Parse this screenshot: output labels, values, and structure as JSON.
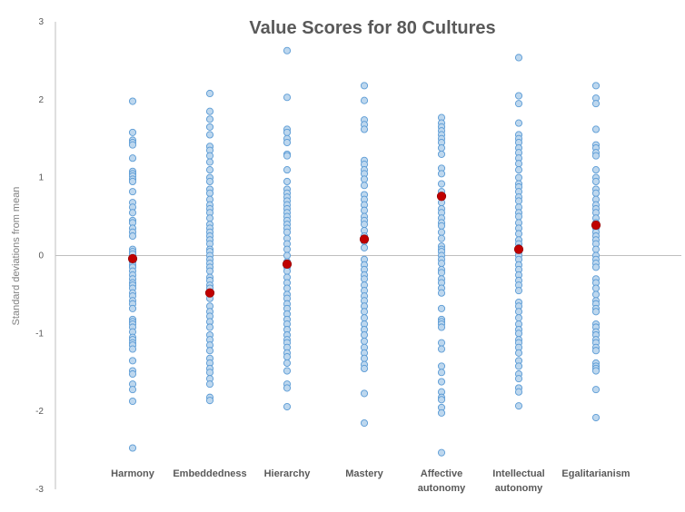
{
  "chart_data": {
    "type": "scatter",
    "title": "Value Scores for 80 Cultures",
    "ylabel": "Standard deviations from mean",
    "xlabel": "",
    "ylim": [
      -3,
      3
    ],
    "yticks": [
      -3,
      -2,
      -1,
      0,
      1,
      2,
      3
    ],
    "grid": false,
    "categories": [
      [
        "Harmony"
      ],
      [
        "Embeddedness"
      ],
      [
        "Hierarchy"
      ],
      [
        "Mastery"
      ],
      [
        "Affective",
        "autonomy"
      ],
      [
        "Intellectual",
        "autonomy"
      ],
      [
        "Egalitarianism"
      ]
    ],
    "colors": {
      "point_fill": "#bdd7ee",
      "point_stroke": "#5b9bd5",
      "mean_fill": "#c00000",
      "axis": "#bfbfbf"
    },
    "series": [
      {
        "values": [
          [
            1.98,
            1.58,
            1.48,
            1.45,
            1.42,
            1.25,
            1.08,
            1.05,
            1.02,
            0.98,
            0.95,
            0.82,
            0.68,
            0.62,
            0.55,
            0.45,
            0.42,
            0.35,
            0.3,
            0.25,
            0.08,
            0.05,
            0.02,
            -0.05,
            -0.08,
            -0.12,
            -0.15,
            -0.2,
            -0.25,
            -0.3,
            -0.35,
            -0.38,
            -0.42,
            -0.48,
            -0.52,
            -0.58,
            -0.62,
            -0.68,
            -0.82,
            -0.85,
            -0.88,
            -0.92,
            -0.98,
            -1.05,
            -1.08,
            -1.12,
            -1.15,
            -1.2,
            -1.35,
            -1.48,
            -1.52,
            -1.65,
            -1.72,
            -1.87,
            -2.47
          ],
          [
            2.08,
            1.85,
            1.75,
            1.65,
            1.55,
            1.4,
            1.35,
            1.28,
            1.2,
            1.1,
            1.0,
            0.95,
            0.85,
            0.8,
            0.72,
            0.65,
            0.6,
            0.55,
            0.48,
            0.4,
            0.35,
            0.3,
            0.25,
            0.2,
            0.15,
            0.08,
            0.05,
            0.0,
            -0.05,
            -0.1,
            -0.15,
            -0.2,
            -0.28,
            -0.32,
            -0.38,
            -0.42,
            -0.55,
            -0.65,
            -0.72,
            -0.78,
            -0.85,
            -0.92,
            -1.02,
            -1.08,
            -1.15,
            -1.22,
            -1.32,
            -1.38,
            -1.45,
            -1.5,
            -1.58,
            -1.65,
            -1.82,
            -1.86
          ],
          [
            2.63,
            2.03,
            1.62,
            1.58,
            1.5,
            1.45,
            1.3,
            1.28,
            1.1,
            0.95,
            0.85,
            0.8,
            0.75,
            0.7,
            0.65,
            0.6,
            0.55,
            0.5,
            0.45,
            0.4,
            0.35,
            0.3,
            0.22,
            0.15,
            0.08,
            0.0,
            -0.08,
            -0.15,
            -0.2,
            -0.28,
            -0.35,
            -0.42,
            -0.5,
            -0.55,
            -0.62,
            -0.68,
            -0.75,
            -0.82,
            -0.88,
            -0.95,
            -1.02,
            -1.08,
            -1.12,
            -1.18,
            -1.25,
            -1.3,
            -1.38,
            -1.48,
            -1.65,
            -1.7,
            -1.94
          ],
          [
            2.18,
            1.99,
            1.74,
            1.68,
            1.62,
            1.22,
            1.17,
            1.1,
            1.05,
            0.98,
            0.9,
            0.78,
            0.72,
            0.65,
            0.58,
            0.5,
            0.45,
            0.4,
            0.32,
            0.25,
            0.18,
            0.1,
            -0.05,
            -0.12,
            -0.18,
            -0.25,
            -0.3,
            -0.38,
            -0.45,
            -0.52,
            -0.58,
            -0.65,
            -0.72,
            -0.8,
            -0.88,
            -0.95,
            -1.02,
            -1.1,
            -1.18,
            -1.25,
            -1.32,
            -1.4,
            -1.45,
            -1.77,
            -2.15
          ],
          [
            1.77,
            1.7,
            1.65,
            1.6,
            1.55,
            1.5,
            1.45,
            1.38,
            1.3,
            1.12,
            1.05,
            0.92,
            0.82,
            0.68,
            0.6,
            0.55,
            0.48,
            0.42,
            0.38,
            0.3,
            0.22,
            0.12,
            0.08,
            0.05,
            0.0,
            -0.05,
            -0.1,
            -0.18,
            -0.22,
            -0.3,
            -0.35,
            -0.42,
            -0.48,
            -0.68,
            -0.82,
            -0.85,
            -0.88,
            -0.92,
            -1.12,
            -1.2,
            -1.42,
            -1.5,
            -1.62,
            -1.75,
            -1.82,
            -1.85,
            -1.95,
            -2.02,
            -2.53
          ],
          [
            2.54,
            2.05,
            1.95,
            1.7,
            1.55,
            1.5,
            1.45,
            1.38,
            1.32,
            1.25,
            1.18,
            1.1,
            1.0,
            0.92,
            0.88,
            0.82,
            0.75,
            0.7,
            0.62,
            0.55,
            0.5,
            0.42,
            0.35,
            0.28,
            0.2,
            0.15,
            0.1,
            0.05,
            0.0,
            -0.05,
            -0.12,
            -0.18,
            -0.25,
            -0.32,
            -0.38,
            -0.45,
            -0.6,
            -0.65,
            -0.72,
            -0.8,
            -0.88,
            -0.95,
            -1.0,
            -1.08,
            -1.12,
            -1.18,
            -1.25,
            -1.35,
            -1.42,
            -1.52,
            -1.58,
            -1.7,
            -1.75,
            -1.93
          ],
          [
            2.18,
            2.02,
            1.95,
            1.62,
            1.42,
            1.38,
            1.32,
            1.28,
            1.1,
            1.0,
            0.95,
            0.85,
            0.8,
            0.72,
            0.65,
            0.6,
            0.55,
            0.48,
            0.42,
            0.35,
            0.3,
            0.25,
            0.2,
            0.15,
            0.08,
            0.0,
            -0.05,
            -0.1,
            -0.15,
            -0.3,
            -0.35,
            -0.42,
            -0.5,
            -0.58,
            -0.62,
            -0.68,
            -0.72,
            -0.88,
            -0.92,
            -0.98,
            -1.02,
            -1.08,
            -1.12,
            -1.18,
            -1.22,
            -1.38,
            -1.42,
            -1.45,
            -1.48,
            -1.72,
            -2.08
          ]
        ]
      }
    ],
    "means": [
      -0.04,
      -0.48,
      -0.11,
      0.21,
      0.76,
      0.08,
      0.39
    ]
  }
}
